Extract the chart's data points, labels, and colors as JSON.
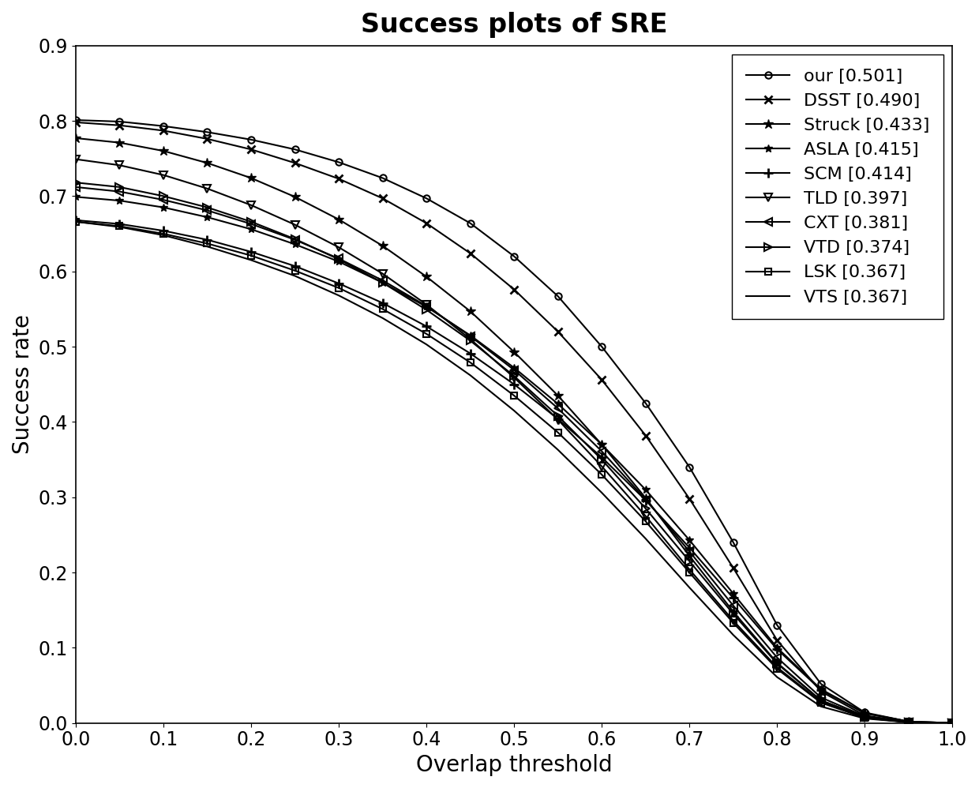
{
  "title": "Success plots of SRE",
  "xlabel": "Overlap threshold",
  "ylabel": "Success rate",
  "xlim": [
    0,
    1
  ],
  "ylim": [
    0,
    0.9
  ],
  "xticks": [
    0,
    0.1,
    0.2,
    0.3,
    0.4,
    0.5,
    0.6,
    0.7,
    0.8,
    0.9,
    1.0
  ],
  "yticks": [
    0,
    0.1,
    0.2,
    0.3,
    0.4,
    0.5,
    0.6,
    0.7,
    0.8,
    0.9
  ],
  "series": [
    {
      "label": "our [0.501]",
      "marker": "o",
      "markerfacecolor": "none",
      "linewidth": 1.5,
      "markersize": 6,
      "markeredgewidth": 1.5,
      "x": [
        0.0,
        0.05,
        0.1,
        0.15,
        0.2,
        0.25,
        0.3,
        0.35,
        0.4,
        0.45,
        0.5,
        0.55,
        0.6,
        0.65,
        0.7,
        0.75,
        0.8,
        0.85,
        0.9,
        0.95,
        1.0
      ],
      "y": [
        0.801,
        0.799,
        0.793,
        0.785,
        0.775,
        0.762,
        0.745,
        0.724,
        0.697,
        0.664,
        0.62,
        0.567,
        0.5,
        0.425,
        0.34,
        0.24,
        0.13,
        0.052,
        0.014,
        0.002,
        0.0
      ]
    },
    {
      "label": "DSST [0.490]",
      "marker": "x",
      "markerfacecolor": "black",
      "linewidth": 1.5,
      "markersize": 7,
      "markeredgewidth": 2.0,
      "x": [
        0.0,
        0.05,
        0.1,
        0.15,
        0.2,
        0.25,
        0.3,
        0.35,
        0.4,
        0.45,
        0.5,
        0.55,
        0.6,
        0.65,
        0.7,
        0.75,
        0.8,
        0.85,
        0.9,
        0.95,
        1.0
      ],
      "y": [
        0.798,
        0.794,
        0.787,
        0.776,
        0.762,
        0.744,
        0.723,
        0.697,
        0.664,
        0.624,
        0.576,
        0.52,
        0.456,
        0.382,
        0.298,
        0.206,
        0.11,
        0.042,
        0.01,
        0.001,
        0.0
      ]
    },
    {
      "label": "Struck [0.433]",
      "marker": "*",
      "markerfacecolor": "black",
      "linewidth": 1.5,
      "markersize": 9,
      "markeredgewidth": 1.0,
      "x": [
        0.0,
        0.05,
        0.1,
        0.15,
        0.2,
        0.25,
        0.3,
        0.35,
        0.4,
        0.45,
        0.5,
        0.55,
        0.6,
        0.65,
        0.7,
        0.75,
        0.8,
        0.85,
        0.9,
        0.95,
        1.0
      ],
      "y": [
        0.777,
        0.771,
        0.76,
        0.744,
        0.724,
        0.699,
        0.669,
        0.634,
        0.593,
        0.547,
        0.493,
        0.435,
        0.37,
        0.299,
        0.222,
        0.148,
        0.08,
        0.03,
        0.008,
        0.001,
        0.0
      ]
    },
    {
      "label": "ASLA [0.415]",
      "marker": "*",
      "markerfacecolor": "black",
      "linewidth": 1.5,
      "markersize": 7,
      "markeredgewidth": 1.0,
      "x": [
        0.0,
        0.05,
        0.1,
        0.15,
        0.2,
        0.25,
        0.3,
        0.35,
        0.4,
        0.45,
        0.5,
        0.55,
        0.6,
        0.65,
        0.7,
        0.75,
        0.8,
        0.85,
        0.9,
        0.95,
        1.0
      ],
      "y": [
        0.699,
        0.694,
        0.685,
        0.672,
        0.656,
        0.636,
        0.613,
        0.585,
        0.553,
        0.515,
        0.472,
        0.424,
        0.37,
        0.31,
        0.243,
        0.172,
        0.1,
        0.045,
        0.013,
        0.002,
        0.0
      ]
    },
    {
      "label": "SCM [0.414]",
      "marker": "+",
      "markerfacecolor": "black",
      "linewidth": 1.5,
      "markersize": 9,
      "markeredgewidth": 2.0,
      "x": [
        0.0,
        0.05,
        0.1,
        0.15,
        0.2,
        0.25,
        0.3,
        0.35,
        0.4,
        0.45,
        0.5,
        0.55,
        0.6,
        0.65,
        0.7,
        0.75,
        0.8,
        0.85,
        0.9,
        0.95,
        1.0
      ],
      "y": [
        0.668,
        0.663,
        0.654,
        0.642,
        0.626,
        0.607,
        0.584,
        0.558,
        0.527,
        0.491,
        0.45,
        0.404,
        0.353,
        0.296,
        0.233,
        0.166,
        0.098,
        0.044,
        0.013,
        0.002,
        0.0
      ]
    },
    {
      "label": "TLD [0.397]",
      "marker": "v",
      "markerfacecolor": "none",
      "linewidth": 1.5,
      "markersize": 7,
      "markeredgewidth": 1.5,
      "x": [
        0.0,
        0.05,
        0.1,
        0.15,
        0.2,
        0.25,
        0.3,
        0.35,
        0.4,
        0.45,
        0.5,
        0.55,
        0.6,
        0.65,
        0.7,
        0.75,
        0.8,
        0.85,
        0.9,
        0.95,
        1.0
      ],
      "y": [
        0.749,
        0.741,
        0.728,
        0.71,
        0.688,
        0.662,
        0.632,
        0.597,
        0.556,
        0.51,
        0.459,
        0.403,
        0.341,
        0.275,
        0.204,
        0.136,
        0.074,
        0.028,
        0.007,
        0.001,
        0.0
      ]
    },
    {
      "label": "CXT [0.381]",
      "marker": "<",
      "markerfacecolor": "none",
      "linewidth": 1.5,
      "markersize": 7,
      "markeredgewidth": 1.5,
      "x": [
        0.0,
        0.05,
        0.1,
        0.15,
        0.2,
        0.25,
        0.3,
        0.35,
        0.4,
        0.45,
        0.5,
        0.55,
        0.6,
        0.65,
        0.7,
        0.75,
        0.8,
        0.85,
        0.9,
        0.95,
        1.0
      ],
      "y": [
        0.712,
        0.706,
        0.695,
        0.681,
        0.663,
        0.642,
        0.617,
        0.588,
        0.554,
        0.514,
        0.469,
        0.418,
        0.361,
        0.297,
        0.228,
        0.156,
        0.087,
        0.034,
        0.009,
        0.001,
        0.0
      ]
    },
    {
      "label": "VTD [0.374]",
      "marker": ">",
      "markerfacecolor": "none",
      "linewidth": 1.5,
      "markersize": 7,
      "markeredgewidth": 1.5,
      "x": [
        0.0,
        0.05,
        0.1,
        0.15,
        0.2,
        0.25,
        0.3,
        0.35,
        0.4,
        0.45,
        0.5,
        0.55,
        0.6,
        0.65,
        0.7,
        0.75,
        0.8,
        0.85,
        0.9,
        0.95,
        1.0
      ],
      "y": [
        0.718,
        0.712,
        0.7,
        0.685,
        0.666,
        0.643,
        0.616,
        0.585,
        0.549,
        0.508,
        0.461,
        0.408,
        0.35,
        0.285,
        0.215,
        0.145,
        0.079,
        0.03,
        0.008,
        0.001,
        0.0
      ]
    },
    {
      "label": "LSK [0.367]",
      "marker": "s",
      "markerfacecolor": "none",
      "linewidth": 1.5,
      "markersize": 6,
      "markeredgewidth": 1.5,
      "x": [
        0.0,
        0.05,
        0.1,
        0.15,
        0.2,
        0.25,
        0.3,
        0.35,
        0.4,
        0.45,
        0.5,
        0.55,
        0.6,
        0.65,
        0.7,
        0.75,
        0.8,
        0.85,
        0.9,
        0.95,
        1.0
      ],
      "y": [
        0.666,
        0.66,
        0.65,
        0.637,
        0.621,
        0.601,
        0.578,
        0.55,
        0.517,
        0.479,
        0.435,
        0.386,
        0.33,
        0.268,
        0.2,
        0.133,
        0.072,
        0.027,
        0.007,
        0.001,
        0.0
      ]
    },
    {
      "label": "VTS [0.367]",
      "marker": "None",
      "markerfacecolor": "none",
      "linewidth": 1.5,
      "markersize": 0,
      "markeredgewidth": 1.0,
      "x": [
        0.0,
        0.05,
        0.1,
        0.15,
        0.2,
        0.25,
        0.3,
        0.35,
        0.4,
        0.45,
        0.5,
        0.55,
        0.6,
        0.65,
        0.7,
        0.75,
        0.8,
        0.85,
        0.9,
        0.95,
        1.0
      ],
      "y": [
        0.666,
        0.659,
        0.648,
        0.633,
        0.615,
        0.594,
        0.568,
        0.538,
        0.503,
        0.462,
        0.415,
        0.363,
        0.306,
        0.245,
        0.18,
        0.117,
        0.061,
        0.022,
        0.006,
        0.001,
        0.0
      ]
    }
  ],
  "title_fontsize": 24,
  "label_fontsize": 20,
  "tick_fontsize": 17,
  "legend_fontsize": 16,
  "title_fontweight": "bold",
  "background_color": "#ffffff"
}
